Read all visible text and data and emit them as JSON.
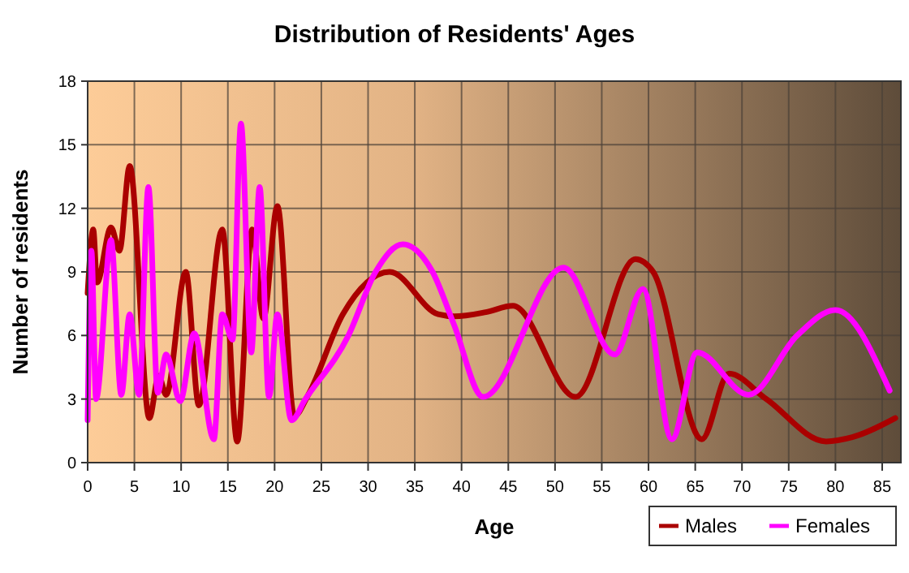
{
  "chart_data": {
    "type": "line",
    "title": "Distribution of Residents' Ages",
    "xlabel": "Age",
    "ylabel": "Number of residents",
    "xlim": [
      0,
      87
    ],
    "xticks": [
      0,
      5,
      10,
      15,
      20,
      25,
      30,
      35,
      40,
      45,
      50,
      55,
      60,
      65,
      70,
      75,
      80,
      85
    ],
    "ylim": [
      0,
      18
    ],
    "yticks": [
      0,
      3,
      6,
      9,
      12,
      15,
      18
    ],
    "grid": true,
    "legend": "bottom right",
    "line_style": "solid",
    "series": [
      {
        "name": "Males",
        "color": "#aa0000",
        "x": [
          0,
          0.6,
          1,
          2.5,
          3.4,
          4.5,
          6.6,
          7.6,
          8.4,
          10.5,
          11.9,
          14.4,
          16,
          17.6,
          18.8,
          20.3,
          22.1,
          23.6,
          27.3,
          32.3,
          37.5,
          39.2,
          42.6,
          45.5,
          52.2,
          58.6,
          60.5,
          65.7,
          68.6,
          72.6,
          79,
          81.8,
          86.4
        ],
        "values": [
          8,
          11,
          8.5,
          11.1,
          10,
          14,
          2.1,
          4.1,
          3.2,
          9,
          2.7,
          11,
          1,
          11,
          6.8,
          12.1,
          2.2,
          3.2,
          7,
          9,
          7,
          6.9,
          7.1,
          7.4,
          3.1,
          9.6,
          9,
          1.1,
          4.2,
          3,
          1,
          1.2,
          2.1
        ]
      },
      {
        "name": "Females",
        "color": "#ff00ff",
        "x": [
          0,
          0.4,
          0.9,
          2.5,
          3.6,
          4.5,
          5.5,
          6.5,
          7.5,
          8.4,
          9.9,
          11.4,
          13.5,
          14.4,
          15.5,
          16.4,
          17.5,
          18.4,
          19.4,
          20.3,
          21.8,
          23.3,
          27.9,
          30.8,
          33.7,
          36.9,
          39.2,
          42.3,
          50.9,
          56.4,
          59.4,
          62.5,
          65.2,
          70.7,
          75.9,
          80,
          85.8
        ],
        "values": [
          2,
          10,
          3,
          10.5,
          3.2,
          7,
          3.2,
          13,
          3.3,
          5.1,
          2.9,
          6.1,
          1.1,
          7,
          5.8,
          16,
          5.2,
          13,
          3.1,
          7,
          2,
          3,
          6,
          9,
          10.3,
          9,
          6.5,
          3.1,
          9.2,
          5.1,
          8.2,
          1.1,
          5.2,
          3.2,
          6,
          7.2,
          3.4
        ]
      }
    ]
  }
}
